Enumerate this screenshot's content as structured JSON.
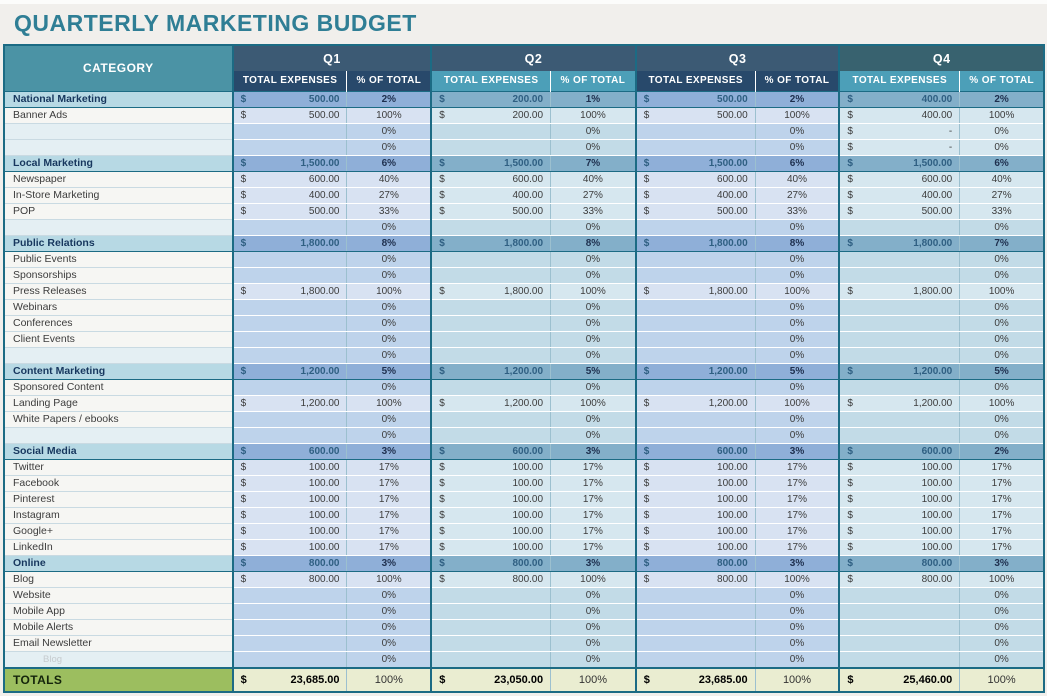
{
  "title": "QUARTERLY MARKETING BUDGET",
  "colors": {
    "title_text": "#2F7E95",
    "page_bg": "#F1EFEC",
    "table_border": "#1C6B84",
    "category_header_bg": "#4B93A5",
    "quarter_band_bg": [
      "#3C5A74",
      "#3C5A74",
      "#3C5A74",
      "#38626F"
    ],
    "subheader_bg_q1_q3": "#28496B",
    "subheader_bg_q2_q4": "#4C9FB8",
    "category_row_label_bg": "#B7D9E4",
    "blue_palette": {
      "category": "#8FAFD8",
      "value": "#D8E2F2",
      "empty": "#BED3EB"
    },
    "cyan_palette": {
      "category": "#83AFC9",
      "value": "#D6E7EF",
      "empty": "#C2DBE7"
    },
    "totals_label_bg": "#9CBE5F",
    "totals_value_bg": "#EAEDD1"
  },
  "table": {
    "category_header": "CATEGORY",
    "expenses_header": "TOTAL EXPENSES",
    "pct_header": "% OF TOTAL",
    "quarters": [
      {
        "label": "Q1",
        "band_color": "#3C5A74",
        "subheader_color": "#28496B",
        "palette": "blue"
      },
      {
        "label": "Q2",
        "band_color": "#3C5A74",
        "subheader_color": "#4C9FB8",
        "palette": "cyan"
      },
      {
        "label": "Q3",
        "band_color": "#3C5A74",
        "subheader_color": "#28496B",
        "palette": "blue"
      },
      {
        "label": "Q4",
        "band_color": "#38626F",
        "subheader_color": "#4C9FB8",
        "palette": "cyan"
      }
    ],
    "rows": [
      {
        "label": "National Marketing",
        "type": "category",
        "cells": [
          [
            "500.00",
            "2%"
          ],
          [
            "200.00",
            "1%"
          ],
          [
            "500.00",
            "2%"
          ],
          [
            "400.00",
            "2%"
          ]
        ]
      },
      {
        "label": "Banner Ads",
        "type": "item",
        "cells": [
          [
            "500.00",
            "100%"
          ],
          [
            "200.00",
            "100%"
          ],
          [
            "500.00",
            "100%"
          ],
          [
            "400.00",
            "100%"
          ]
        ]
      },
      {
        "label": "",
        "type": "blank",
        "cells": [
          [
            "",
            "0%"
          ],
          [
            "",
            "0%"
          ],
          [
            "",
            "0%"
          ],
          [
            "-",
            "0%"
          ]
        ]
      },
      {
        "label": "",
        "type": "blank",
        "cells": [
          [
            "",
            "0%"
          ],
          [
            "",
            "0%"
          ],
          [
            "",
            "0%"
          ],
          [
            "-",
            "0%"
          ]
        ]
      },
      {
        "label": "Local Marketing",
        "type": "category",
        "cells": [
          [
            "1,500.00",
            "6%"
          ],
          [
            "1,500.00",
            "7%"
          ],
          [
            "1,500.00",
            "6%"
          ],
          [
            "1,500.00",
            "6%"
          ]
        ]
      },
      {
        "label": "Newspaper",
        "type": "item",
        "cells": [
          [
            "600.00",
            "40%"
          ],
          [
            "600.00",
            "40%"
          ],
          [
            "600.00",
            "40%"
          ],
          [
            "600.00",
            "40%"
          ]
        ]
      },
      {
        "label": "In-Store Marketing",
        "type": "item",
        "cells": [
          [
            "400.00",
            "27%"
          ],
          [
            "400.00",
            "27%"
          ],
          [
            "400.00",
            "27%"
          ],
          [
            "400.00",
            "27%"
          ]
        ]
      },
      {
        "label": "POP",
        "type": "item",
        "cells": [
          [
            "500.00",
            "33%"
          ],
          [
            "500.00",
            "33%"
          ],
          [
            "500.00",
            "33%"
          ],
          [
            "500.00",
            "33%"
          ]
        ]
      },
      {
        "label": "",
        "type": "blank",
        "cells": [
          [
            "",
            "0%"
          ],
          [
            "",
            "0%"
          ],
          [
            "",
            "0%"
          ],
          [
            "",
            "0%"
          ]
        ]
      },
      {
        "label": "Public Relations",
        "type": "category",
        "cells": [
          [
            "1,800.00",
            "8%"
          ],
          [
            "1,800.00",
            "8%"
          ],
          [
            "1,800.00",
            "8%"
          ],
          [
            "1,800.00",
            "7%"
          ]
        ]
      },
      {
        "label": "Public Events",
        "type": "item",
        "cells": [
          [
            "",
            "0%"
          ],
          [
            "",
            "0%"
          ],
          [
            "",
            "0%"
          ],
          [
            "",
            "0%"
          ]
        ]
      },
      {
        "label": "Sponsorships",
        "type": "item",
        "cells": [
          [
            "",
            "0%"
          ],
          [
            "",
            "0%"
          ],
          [
            "",
            "0%"
          ],
          [
            "",
            "0%"
          ]
        ]
      },
      {
        "label": "Press Releases",
        "type": "item",
        "cells": [
          [
            "1,800.00",
            "100%"
          ],
          [
            "1,800.00",
            "100%"
          ],
          [
            "1,800.00",
            "100%"
          ],
          [
            "1,800.00",
            "100%"
          ]
        ]
      },
      {
        "label": "Webinars",
        "type": "item",
        "cells": [
          [
            "",
            "0%"
          ],
          [
            "",
            "0%"
          ],
          [
            "",
            "0%"
          ],
          [
            "",
            "0%"
          ]
        ]
      },
      {
        "label": "Conferences",
        "type": "item",
        "cells": [
          [
            "",
            "0%"
          ],
          [
            "",
            "0%"
          ],
          [
            "",
            "0%"
          ],
          [
            "",
            "0%"
          ]
        ]
      },
      {
        "label": "Client Events",
        "type": "item",
        "cells": [
          [
            "",
            "0%"
          ],
          [
            "",
            "0%"
          ],
          [
            "",
            "0%"
          ],
          [
            "",
            "0%"
          ]
        ]
      },
      {
        "label": "",
        "type": "blank",
        "cells": [
          [
            "",
            "0%"
          ],
          [
            "",
            "0%"
          ],
          [
            "",
            "0%"
          ],
          [
            "",
            "0%"
          ]
        ]
      },
      {
        "label": "Content Marketing",
        "type": "category",
        "cells": [
          [
            "1,200.00",
            "5%"
          ],
          [
            "1,200.00",
            "5%"
          ],
          [
            "1,200.00",
            "5%"
          ],
          [
            "1,200.00",
            "5%"
          ]
        ]
      },
      {
        "label": "Sponsored Content",
        "type": "item",
        "cells": [
          [
            "",
            "0%"
          ],
          [
            "",
            "0%"
          ],
          [
            "",
            "0%"
          ],
          [
            "",
            "0%"
          ]
        ]
      },
      {
        "label": "Landing Page",
        "type": "item",
        "cells": [
          [
            "1,200.00",
            "100%"
          ],
          [
            "1,200.00",
            "100%"
          ],
          [
            "1,200.00",
            "100%"
          ],
          [
            "1,200.00",
            "100%"
          ]
        ]
      },
      {
        "label": "White Papers / ebooks",
        "type": "item",
        "cells": [
          [
            "",
            "0%"
          ],
          [
            "",
            "0%"
          ],
          [
            "",
            "0%"
          ],
          [
            "",
            "0%"
          ]
        ]
      },
      {
        "label": "",
        "type": "blank",
        "cells": [
          [
            "",
            "0%"
          ],
          [
            "",
            "0%"
          ],
          [
            "",
            "0%"
          ],
          [
            "",
            "0%"
          ]
        ]
      },
      {
        "label": "Social Media",
        "type": "category",
        "cells": [
          [
            "600.00",
            "3%"
          ],
          [
            "600.00",
            "3%"
          ],
          [
            "600.00",
            "3%"
          ],
          [
            "600.00",
            "2%"
          ]
        ]
      },
      {
        "label": "Twitter",
        "type": "item",
        "cells": [
          [
            "100.00",
            "17%"
          ],
          [
            "100.00",
            "17%"
          ],
          [
            "100.00",
            "17%"
          ],
          [
            "100.00",
            "17%"
          ]
        ]
      },
      {
        "label": "Facebook",
        "type": "item",
        "cells": [
          [
            "100.00",
            "17%"
          ],
          [
            "100.00",
            "17%"
          ],
          [
            "100.00",
            "17%"
          ],
          [
            "100.00",
            "17%"
          ]
        ]
      },
      {
        "label": "Pinterest",
        "type": "item",
        "cells": [
          [
            "100.00",
            "17%"
          ],
          [
            "100.00",
            "17%"
          ],
          [
            "100.00",
            "17%"
          ],
          [
            "100.00",
            "17%"
          ]
        ]
      },
      {
        "label": "Instagram",
        "type": "item",
        "cells": [
          [
            "100.00",
            "17%"
          ],
          [
            "100.00",
            "17%"
          ],
          [
            "100.00",
            "17%"
          ],
          [
            "100.00",
            "17%"
          ]
        ]
      },
      {
        "label": "Google+",
        "type": "item",
        "cells": [
          [
            "100.00",
            "17%"
          ],
          [
            "100.00",
            "17%"
          ],
          [
            "100.00",
            "17%"
          ],
          [
            "100.00",
            "17%"
          ]
        ]
      },
      {
        "label": "LinkedIn",
        "type": "item",
        "cells": [
          [
            "100.00",
            "17%"
          ],
          [
            "100.00",
            "17%"
          ],
          [
            "100.00",
            "17%"
          ],
          [
            "100.00",
            "17%"
          ]
        ]
      },
      {
        "label": "Online",
        "type": "category",
        "cells": [
          [
            "800.00",
            "3%"
          ],
          [
            "800.00",
            "3%"
          ],
          [
            "800.00",
            "3%"
          ],
          [
            "800.00",
            "3%"
          ]
        ]
      },
      {
        "label": "Blog",
        "type": "item",
        "cells": [
          [
            "800.00",
            "100%"
          ],
          [
            "800.00",
            "100%"
          ],
          [
            "800.00",
            "100%"
          ],
          [
            "800.00",
            "100%"
          ]
        ]
      },
      {
        "label": "Website",
        "type": "item",
        "cells": [
          [
            "",
            "0%"
          ],
          [
            "",
            "0%"
          ],
          [
            "",
            "0%"
          ],
          [
            "",
            "0%"
          ]
        ]
      },
      {
        "label": "Mobile App",
        "type": "item",
        "cells": [
          [
            "",
            "0%"
          ],
          [
            "",
            "0%"
          ],
          [
            "",
            "0%"
          ],
          [
            "",
            "0%"
          ]
        ]
      },
      {
        "label": "Mobile Alerts",
        "type": "item",
        "cells": [
          [
            "",
            "0%"
          ],
          [
            "",
            "0%"
          ],
          [
            "",
            "0%"
          ],
          [
            "",
            "0%"
          ]
        ]
      },
      {
        "label": "Email Newsletter",
        "type": "item",
        "cells": [
          [
            "",
            "0%"
          ],
          [
            "",
            "0%"
          ],
          [
            "",
            "0%"
          ],
          [
            "",
            "0%"
          ]
        ]
      },
      {
        "label": "Blog",
        "type": "ghost",
        "cells": [
          [
            "",
            "0%"
          ],
          [
            "",
            "0%"
          ],
          [
            "",
            "0%"
          ],
          [
            "",
            "0%"
          ]
        ]
      }
    ],
    "totals": {
      "label": "TOTALS",
      "cells": [
        {
          "amount": "23,685.00",
          "pct": "100%"
        },
        {
          "amount": "23,050.00",
          "pct": "100%"
        },
        {
          "amount": "23,685.00",
          "pct": "100%"
        },
        {
          "amount": "25,460.00",
          "pct": "100%"
        }
      ]
    }
  }
}
